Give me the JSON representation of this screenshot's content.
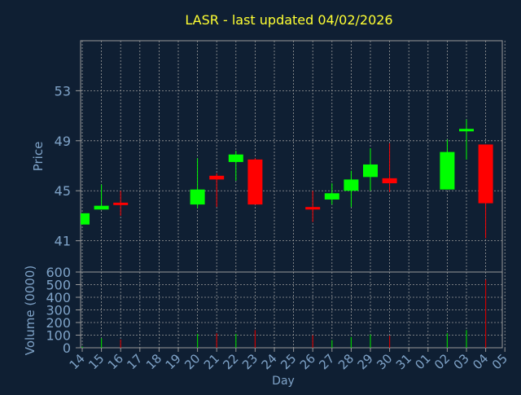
{
  "colors": {
    "background": "#0f1f33",
    "title": "#ffff33",
    "axis_text": "#7fa3c8",
    "frame": "#9a9a9a",
    "grid": "#9a9a9a",
    "up": "#00ff00",
    "down": "#ff0000",
    "dark_up_wick": "#00cc00",
    "volume_up": "#00cc00",
    "volume_down": "#cc0000"
  },
  "chart_data": {
    "title": "LASR - last updated 04/02/2026",
    "xlabel": "Day",
    "x_ticks": [
      "14",
      "15",
      "16",
      "17",
      "18",
      "19",
      "20",
      "21",
      "22",
      "23",
      "24",
      "25",
      "26",
      "27",
      "28",
      "29",
      "30",
      "31",
      "01",
      "02",
      "03",
      "04",
      "05"
    ],
    "price_panel": {
      "type": "candlestick",
      "ylabel": "Price",
      "ylim": [
        38.5,
        57.0
      ],
      "y_ticks": [
        41,
        45,
        49,
        53
      ],
      "grid": true,
      "candles": [
        {
          "day": "14",
          "open": 42.3,
          "close": 43.2,
          "high": 43.2,
          "low": 42.3
        },
        {
          "day": "15",
          "open": 43.5,
          "close": 43.8,
          "high": 45.5,
          "low": 43.5
        },
        {
          "day": "16",
          "open": 44.0,
          "close": 43.9,
          "high": 45.0,
          "low": 43.0
        },
        {
          "day": "20",
          "open": 43.9,
          "close": 45.1,
          "high": 47.6,
          "low": 43.6
        },
        {
          "day": "21",
          "open": 46.2,
          "close": 45.9,
          "high": 46.4,
          "low": 43.7
        },
        {
          "day": "22",
          "open": 47.3,
          "close": 47.9,
          "high": 48.2,
          "low": 45.8
        },
        {
          "day": "23",
          "open": 47.5,
          "close": 43.9,
          "high": 47.6,
          "low": 43.9
        },
        {
          "day": "26",
          "open": 43.7,
          "close": 43.5,
          "high": 45.0,
          "low": 42.5
        },
        {
          "day": "27",
          "open": 44.3,
          "close": 44.8,
          "high": 45.6,
          "low": 43.9
        },
        {
          "day": "28",
          "open": 45.0,
          "close": 45.9,
          "high": 46.6,
          "low": 43.7
        },
        {
          "day": "29",
          "open": 46.1,
          "close": 47.1,
          "high": 48.4,
          "low": 45.0
        },
        {
          "day": "30",
          "open": 46.0,
          "close": 45.6,
          "high": 48.8,
          "low": 44.9
        },
        {
          "day": "02",
          "open": 45.1,
          "close": 48.1,
          "high": 49.1,
          "low": 45.1
        },
        {
          "day": "03",
          "open": 49.8,
          "close": 49.9,
          "high": 50.7,
          "low": 47.5
        },
        {
          "day": "04",
          "open": 48.7,
          "close": 44.0,
          "high": 48.7,
          "low": 41.2
        }
      ]
    },
    "volume_panel": {
      "type": "bar",
      "ylabel": "Volume (0000)",
      "ylim": [
        0,
        600
      ],
      "y_ticks": [
        0,
        100,
        200,
        300,
        400,
        500,
        600
      ],
      "bars": [
        {
          "day": "14",
          "value": 10,
          "direction": "up"
        },
        {
          "day": "15",
          "value": 75,
          "direction": "up"
        },
        {
          "day": "16",
          "value": 65,
          "direction": "down"
        },
        {
          "day": "20",
          "value": 110,
          "direction": "up"
        },
        {
          "day": "21",
          "value": 115,
          "direction": "down"
        },
        {
          "day": "22",
          "value": 110,
          "direction": "up"
        },
        {
          "day": "23",
          "value": 140,
          "direction": "down"
        },
        {
          "day": "26",
          "value": 100,
          "direction": "down"
        },
        {
          "day": "27",
          "value": 60,
          "direction": "up"
        },
        {
          "day": "28",
          "value": 85,
          "direction": "up"
        },
        {
          "day": "29",
          "value": 105,
          "direction": "up"
        },
        {
          "day": "30",
          "value": 95,
          "direction": "down"
        },
        {
          "day": "02",
          "value": 115,
          "direction": "up"
        },
        {
          "day": "03",
          "value": 140,
          "direction": "up"
        },
        {
          "day": "04",
          "value": 540,
          "direction": "down"
        }
      ]
    }
  }
}
